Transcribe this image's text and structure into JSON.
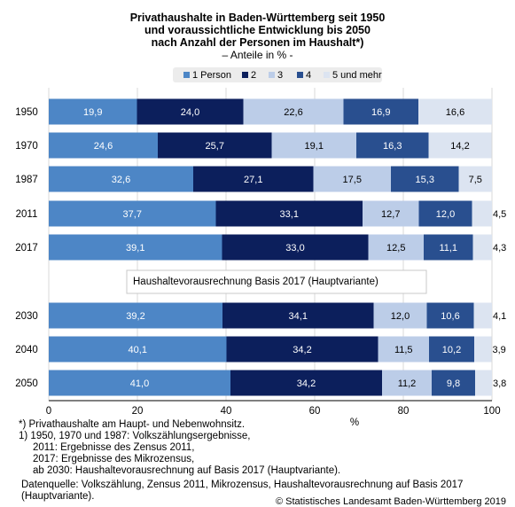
{
  "chart_data": {
    "type": "bar",
    "orientation": "horizontal",
    "stacked": true,
    "title": "Privathaushalte in Baden-Württemberg seit 1950\nund voraussichtliche Entwicklung bis 2050\nnach Anzahl der Personen im Haushalt*)",
    "subtitle": "– Anteile in % -",
    "xlabel": "%",
    "xlim": [
      0,
      100
    ],
    "xticks": [
      0,
      20,
      40,
      60,
      80,
      100
    ],
    "grid": true,
    "legend_position": "top",
    "categories": [
      "1950",
      "1970",
      "1987",
      "2011",
      "2017",
      "2030",
      "2040",
      "2050"
    ],
    "section_label": "Haushaltevorausrechnung Basis 2017 (Hauptvariante)",
    "series": [
      {
        "name": "1 Person",
        "color": "#4d86c6",
        "label_color": "#ffffff",
        "values": [
          19.9,
          24.6,
          32.6,
          37.7,
          39.1,
          39.2,
          40.1,
          41.0
        ],
        "labels": [
          "19,9",
          "24,6",
          "32,6",
          "37,7",
          "39,1",
          "39,2",
          "40,1",
          "41,0"
        ]
      },
      {
        "name": "2",
        "color": "#0c1f5c",
        "label_color": "#ffffff",
        "values": [
          24.0,
          25.7,
          27.1,
          33.1,
          33.0,
          34.1,
          34.2,
          34.2
        ],
        "labels": [
          "24,0",
          "25,7",
          "27,1",
          "33,1",
          "33,0",
          "34,1",
          "34,2",
          "34,2"
        ]
      },
      {
        "name": "3",
        "color": "#bccde8",
        "label_color": "#000000",
        "values": [
          22.6,
          19.1,
          17.5,
          12.7,
          12.5,
          12.0,
          11.5,
          11.2
        ],
        "labels": [
          "22,6",
          "19,1",
          "17,5",
          "12,7",
          "12,5",
          "12,0",
          "11,5",
          "11,2"
        ]
      },
      {
        "name": "4",
        "color": "#294f8f",
        "label_color": "#ffffff",
        "values": [
          16.9,
          16.3,
          15.3,
          12.0,
          11.1,
          10.6,
          10.2,
          9.8
        ],
        "labels": [
          "16,9",
          "16,3",
          "15,3",
          "12,0",
          "11,1",
          "10,6",
          "10,2",
          "9,8"
        ]
      },
      {
        "name": "5 und mehr",
        "color": "#dce4f1",
        "label_color": "#000000",
        "values": [
          16.6,
          14.2,
          7.5,
          4.5,
          4.3,
          4.1,
          3.9,
          3.8
        ],
        "labels": [
          "16,6",
          "14,2",
          "7,5",
          "4,5",
          "4,3",
          "4,1",
          "3,9",
          "3,8"
        ]
      }
    ]
  },
  "notes": {
    "footnote_1": "*) Privathaushalte am Haupt- und Nebenwohnsitz.",
    "footnote_2": "1) 1950, 1970 und 1987: Volkszählungsergebnisse,\n     2011: Ergebnisse des Zensus 2011,\n     2017: Ergebnisse des Mikrozensus,\n     ab 2030: Haushaltevorausrechnung auf Basis 2017 (Hauptvariante).",
    "source_line1": "Datenquelle: Volkszählung, Zensus 2011, Mikrozensus, Haushaltevorausrechnung auf Basis 2017",
    "source_line2": "(Hauptvariante).",
    "copyright": "© Statistisches Landesamt Baden-Württemberg 2019"
  }
}
